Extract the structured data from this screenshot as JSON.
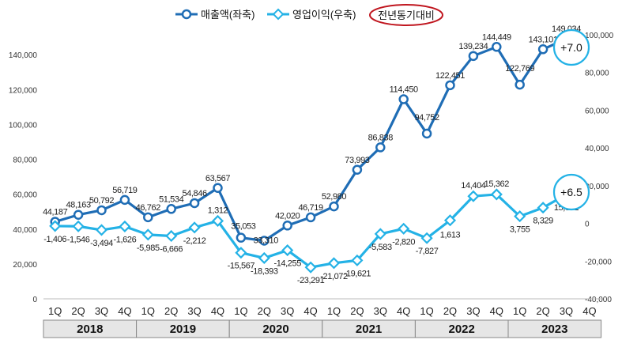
{
  "chart_data": {
    "type": "line",
    "title": "",
    "legend": {
      "position": "top-center",
      "items": [
        {
          "label": "매출액(좌축)",
          "color": "#1f6db5",
          "series": "revenue"
        },
        {
          "label": "영업이익(우축)",
          "color": "#24b2e6",
          "series": "profit"
        },
        {
          "label": "전년동기대비",
          "color": "#c0161f",
          "style": "red-ellipse"
        }
      ]
    },
    "quarters": [
      "1Q",
      "2Q",
      "3Q",
      "4Q",
      "1Q",
      "2Q",
      "3Q",
      "4Q",
      "1Q",
      "2Q",
      "3Q",
      "4Q",
      "1Q",
      "2Q",
      "3Q",
      "4Q",
      "1Q",
      "2Q",
      "3Q",
      "4Q",
      "1Q",
      "2Q",
      "3Q",
      "4Q"
    ],
    "years": [
      "2018",
      "2019",
      "2020",
      "2021",
      "2022",
      "2023"
    ],
    "y_left": {
      "min": 0,
      "max": 160000,
      "ticks": [
        "0",
        "20,000",
        "40,000",
        "60,000",
        "80,000",
        "100,000",
        "120,000",
        "140,000"
      ]
    },
    "y_right": {
      "min": -40000,
      "max": 100000,
      "ticks": [
        "-40,000",
        "-20,000",
        "0",
        "20,000",
        "40,000",
        "60,000",
        "80,000",
        "100,000"
      ]
    },
    "series": [
      {
        "name": "매출액(좌축)",
        "axis": "left",
        "color": "#1f6db5",
        "marker": "circle",
        "values": [
          44187,
          48163,
          50792,
          56719,
          46762,
          51534,
          54846,
          63567,
          35053,
          33310,
          42020,
          46719,
          52980,
          73993,
          86838,
          114450,
          94752,
          122451,
          139234,
          144449,
          122769,
          143101,
          149034,
          null
        ],
        "labels": [
          "44,187",
          "48,163",
          "50,792",
          "56,719",
          "46,762",
          "51,534",
          "54,846",
          "63,567",
          "35,053",
          "33,310",
          "42,020",
          "46,719",
          "52,980",
          "73,993",
          "86,838",
          "114,450",
          "94,752",
          "122,451",
          "139,234",
          "144,449",
          "122,769",
          "143,101",
          "149,034",
          ""
        ]
      },
      {
        "name": "영업이익(우축)",
        "axis": "right",
        "color": "#24b2e6",
        "marker": "diamond",
        "values": [
          -1406,
          -1546,
          -3494,
          -1626,
          -5985,
          -6666,
          -2212,
          1312,
          -15567,
          -18393,
          -14255,
          -23291,
          -21072,
          -19621,
          -5583,
          -2820,
          -7827,
          1613,
          14404,
          15362,
          3755,
          8329,
          15341,
          null
        ],
        "labels": [
          "-1,406",
          "-1,546",
          "-3,494",
          "-1,626",
          "-5,985",
          "-6,666",
          "-2,212",
          "1,312",
          "-15,567",
          "-18,393",
          "-14,255",
          "-23,291",
          "-21,072",
          "-19,621",
          "-5,583",
          "-2,820",
          "-7,827",
          "1,613",
          "14,404",
          "15,362",
          "3,755",
          "8,329",
          "15,341",
          ""
        ]
      }
    ],
    "annotations": [
      {
        "text": "+7.0",
        "series": "revenue"
      },
      {
        "text": "+6.5",
        "series": "profit"
      }
    ]
  }
}
